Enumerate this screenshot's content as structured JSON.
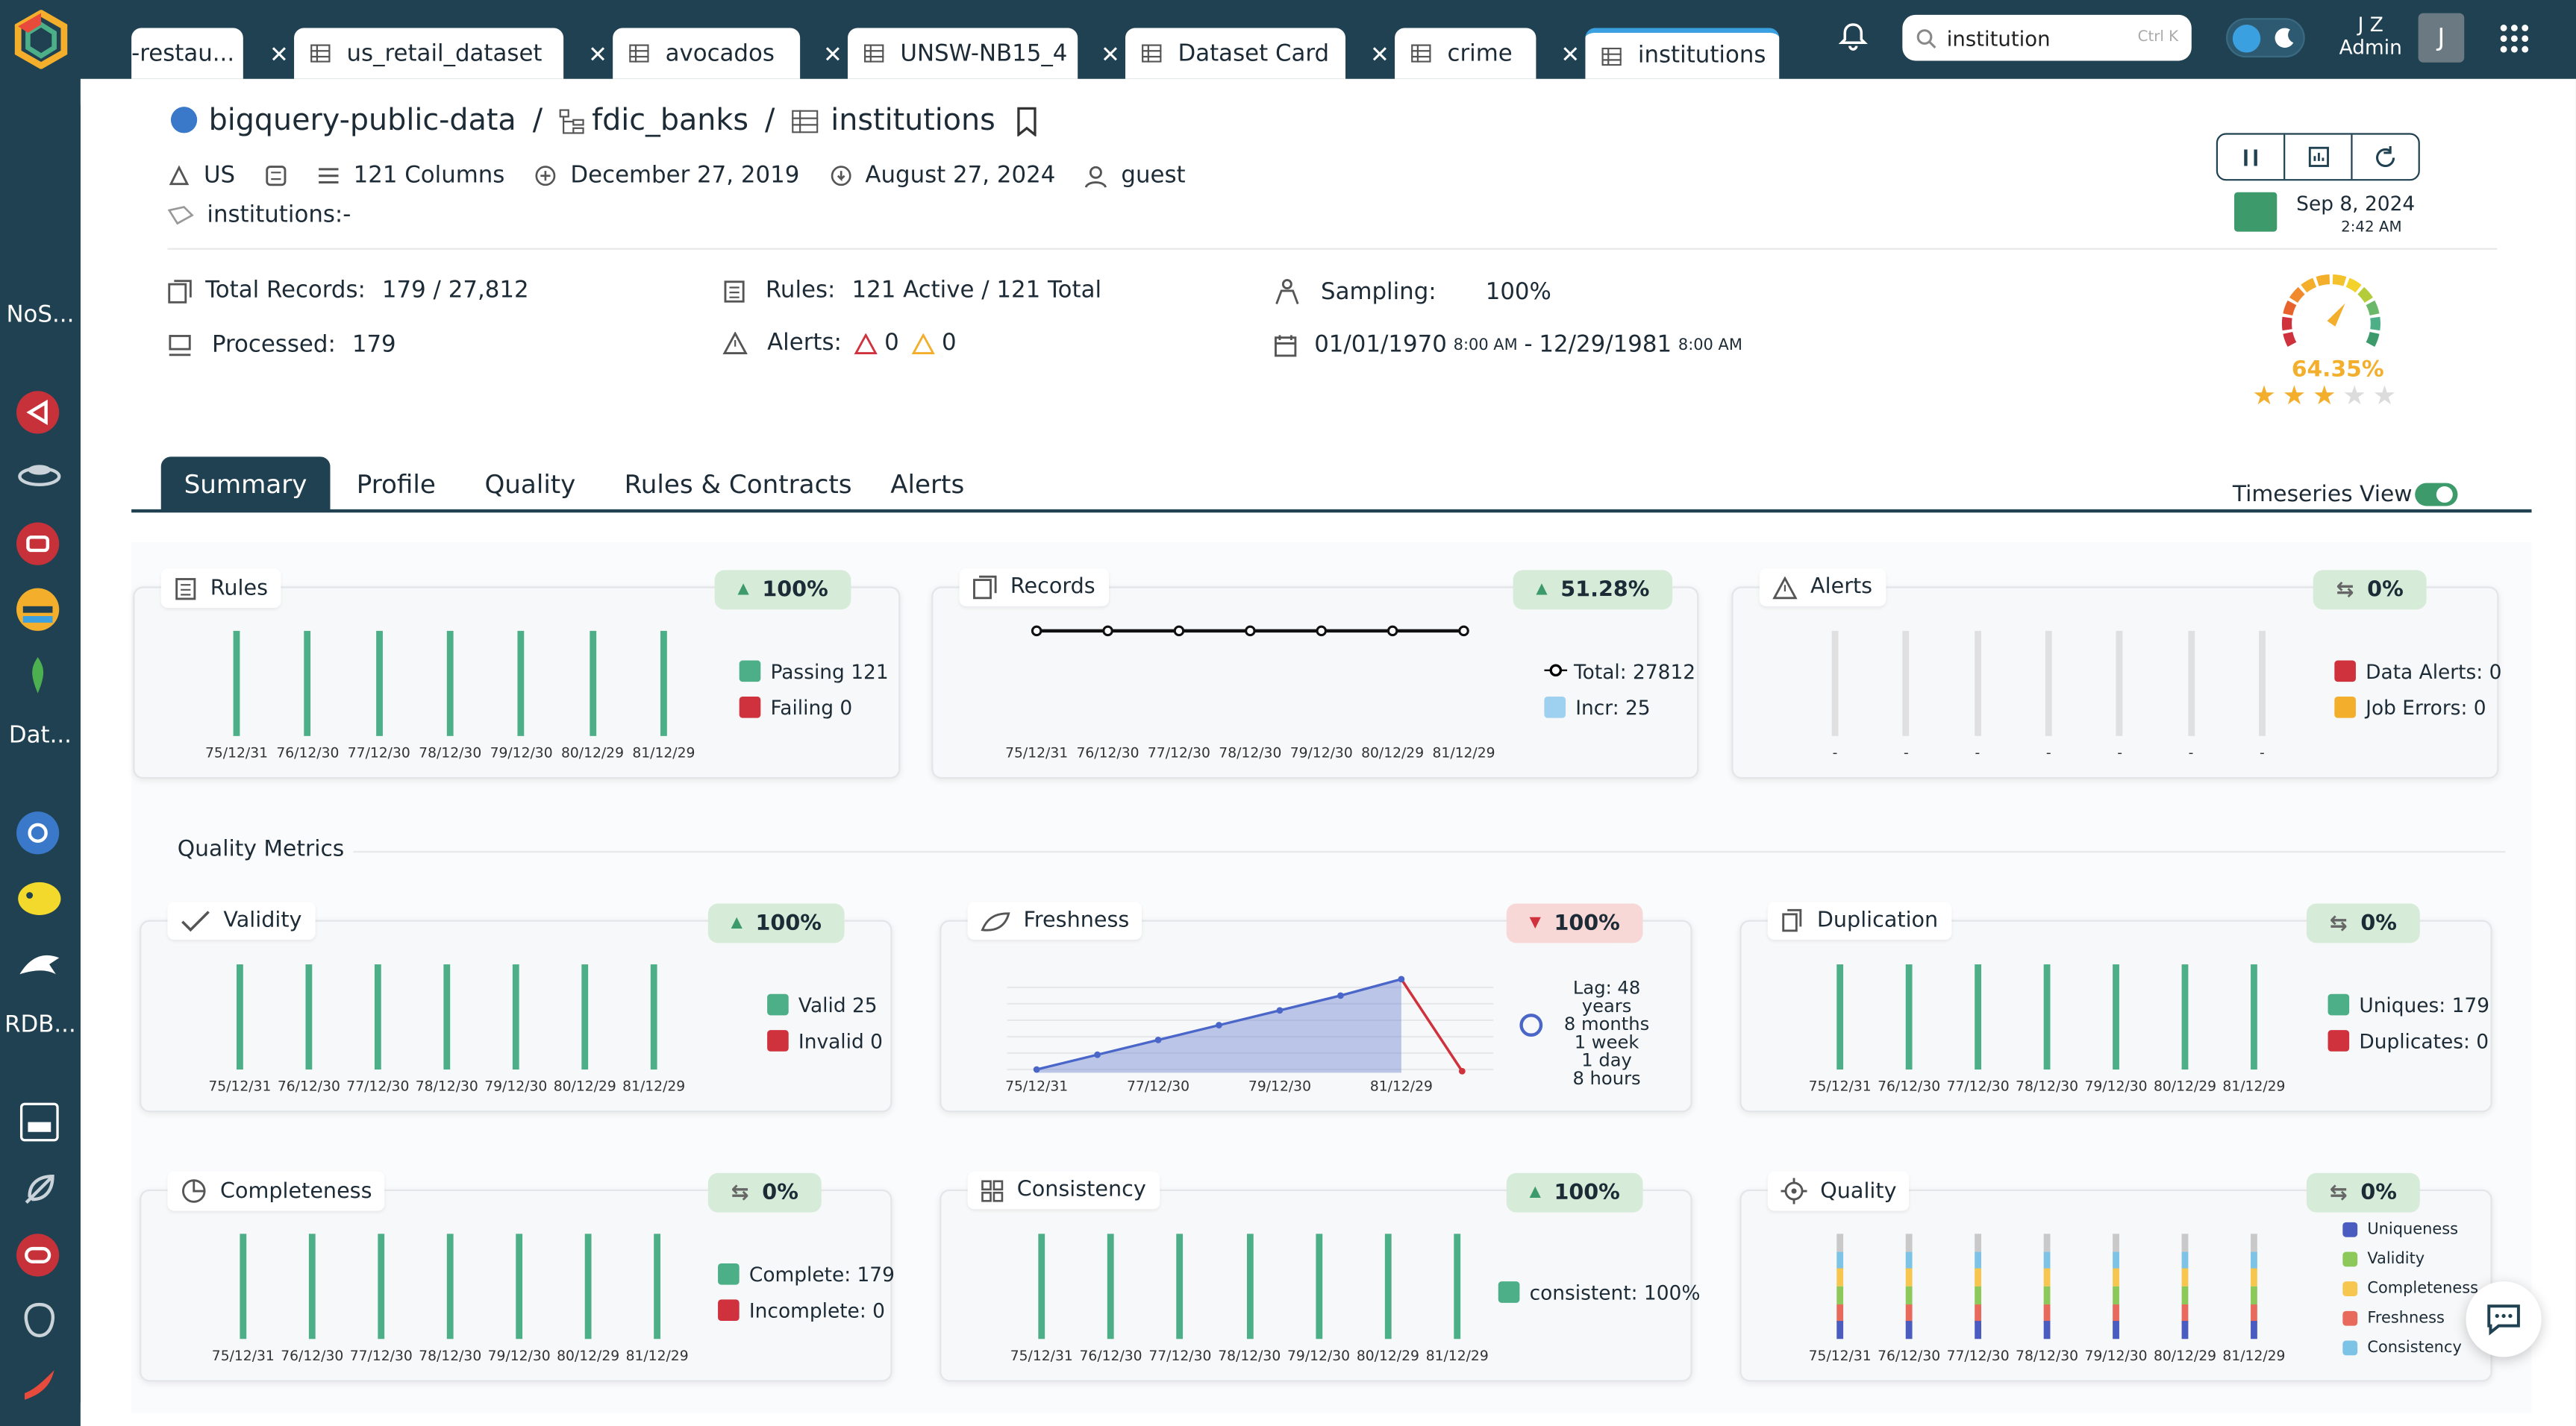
{
  "tabs": [
    {
      "label": "-restau..."
    },
    {
      "label": "us_retail_dataset"
    },
    {
      "label": "avocados"
    },
    {
      "label": "UNSW-NB15_4"
    },
    {
      "label": "Dataset Card"
    },
    {
      "label": "crime"
    },
    {
      "label": "institutions"
    }
  ],
  "search": {
    "value": "institution",
    "shortcut": "Ctrl K"
  },
  "user": {
    "initials": "J Z",
    "role": "Admin",
    "avatar": "J"
  },
  "sidebar": {
    "labels": [
      "NoS...",
      "Dat...",
      "RDB..."
    ]
  },
  "breadcrumb": {
    "project": "bigquery-public-data",
    "sep1": "/",
    "dataset": "fdic_banks",
    "sep2": "/",
    "table": "institutions"
  },
  "meta": {
    "region": "US",
    "columns": "121 Columns",
    "created": "December 27, 2019",
    "updated": "August 27, 2024",
    "owner": "guest",
    "tag": "institutions:-"
  },
  "run": {
    "date": "Sep 8, 2024",
    "time": "2:42 AM"
  },
  "stats": {
    "total_records_label": "Total Records:",
    "total_records": "179 / 27,812",
    "processed_label": "Processed:",
    "processed": "179",
    "rules_label": "Rules:",
    "rules": "121 Active / 121 Total",
    "alerts_label": "Alerts:",
    "alerts_red": "0",
    "alerts_yellow": "0",
    "sampling_label": "Sampling:",
    "sampling": "100%",
    "date_range_start": "01/01/1970",
    "date_range_start_time": "8:00 AM",
    "date_range_sep": "-",
    "date_range_end": "12/29/1981",
    "date_range_end_time": "8:00 AM"
  },
  "score": {
    "value": "64.35%",
    "level": 0.6435,
    "stars": 3,
    "stars_total": 5
  },
  "nav": {
    "tabs": [
      "Summary",
      "Profile",
      "Quality",
      "Rules & Contracts",
      "Alerts"
    ],
    "timeseries_label": "Timeseries View :"
  },
  "colors": {
    "green": "#4caf87",
    "red": "#d0323d",
    "yellow": "#f3ae2c",
    "blue": "#4a66c8",
    "navy": "#1f4151"
  },
  "x_dates": [
    "75/12/31",
    "76/12/30",
    "77/12/30",
    "78/12/30",
    "79/12/30",
    "80/12/29",
    "81/12/29"
  ],
  "cards": {
    "rules": {
      "title": "Rules",
      "badge": "100%",
      "passing": "Passing   121",
      "failing": "Failing   0"
    },
    "records": {
      "title": "Records",
      "badge": "51.28%",
      "total": "Total: 27812",
      "incr": "Incr: 25"
    },
    "alerts": {
      "title": "Alerts",
      "badge": "0%",
      "data_alerts": "Data Alerts: 0",
      "job_errors": "Job Errors: 0",
      "x": "-"
    },
    "validity": {
      "title": "Validity",
      "badge": "100%",
      "valid": "Valid 25",
      "invalid": "Invalid 0"
    },
    "freshness": {
      "title": "Freshness",
      "badge": "100%",
      "lag": [
        "Lag: 48 years",
        "8 months",
        "1 week",
        "1 day",
        "8 hours"
      ],
      "x_labels": [
        "75/12/31",
        "77/12/30",
        "79/12/30",
        "81/12/29"
      ]
    },
    "duplication": {
      "title": "Duplication",
      "badge": "0%",
      "uniques": "Uniques: 179",
      "duplicates": "Duplicates: 0"
    },
    "completeness": {
      "title": "Completeness",
      "badge": "0%",
      "complete": "Complete: 179",
      "incomplete": "Incomplete: 0"
    },
    "consistency": {
      "title": "Consistency",
      "badge": "100%",
      "consistent": "consistent: 100%"
    },
    "quality": {
      "title": "Quality",
      "badge": "0%",
      "legend": [
        "Uniqueness",
        "Validity",
        "Completeness",
        "Freshness",
        "Consistency"
      ]
    }
  },
  "quality_metrics_label": "Quality Metrics"
}
